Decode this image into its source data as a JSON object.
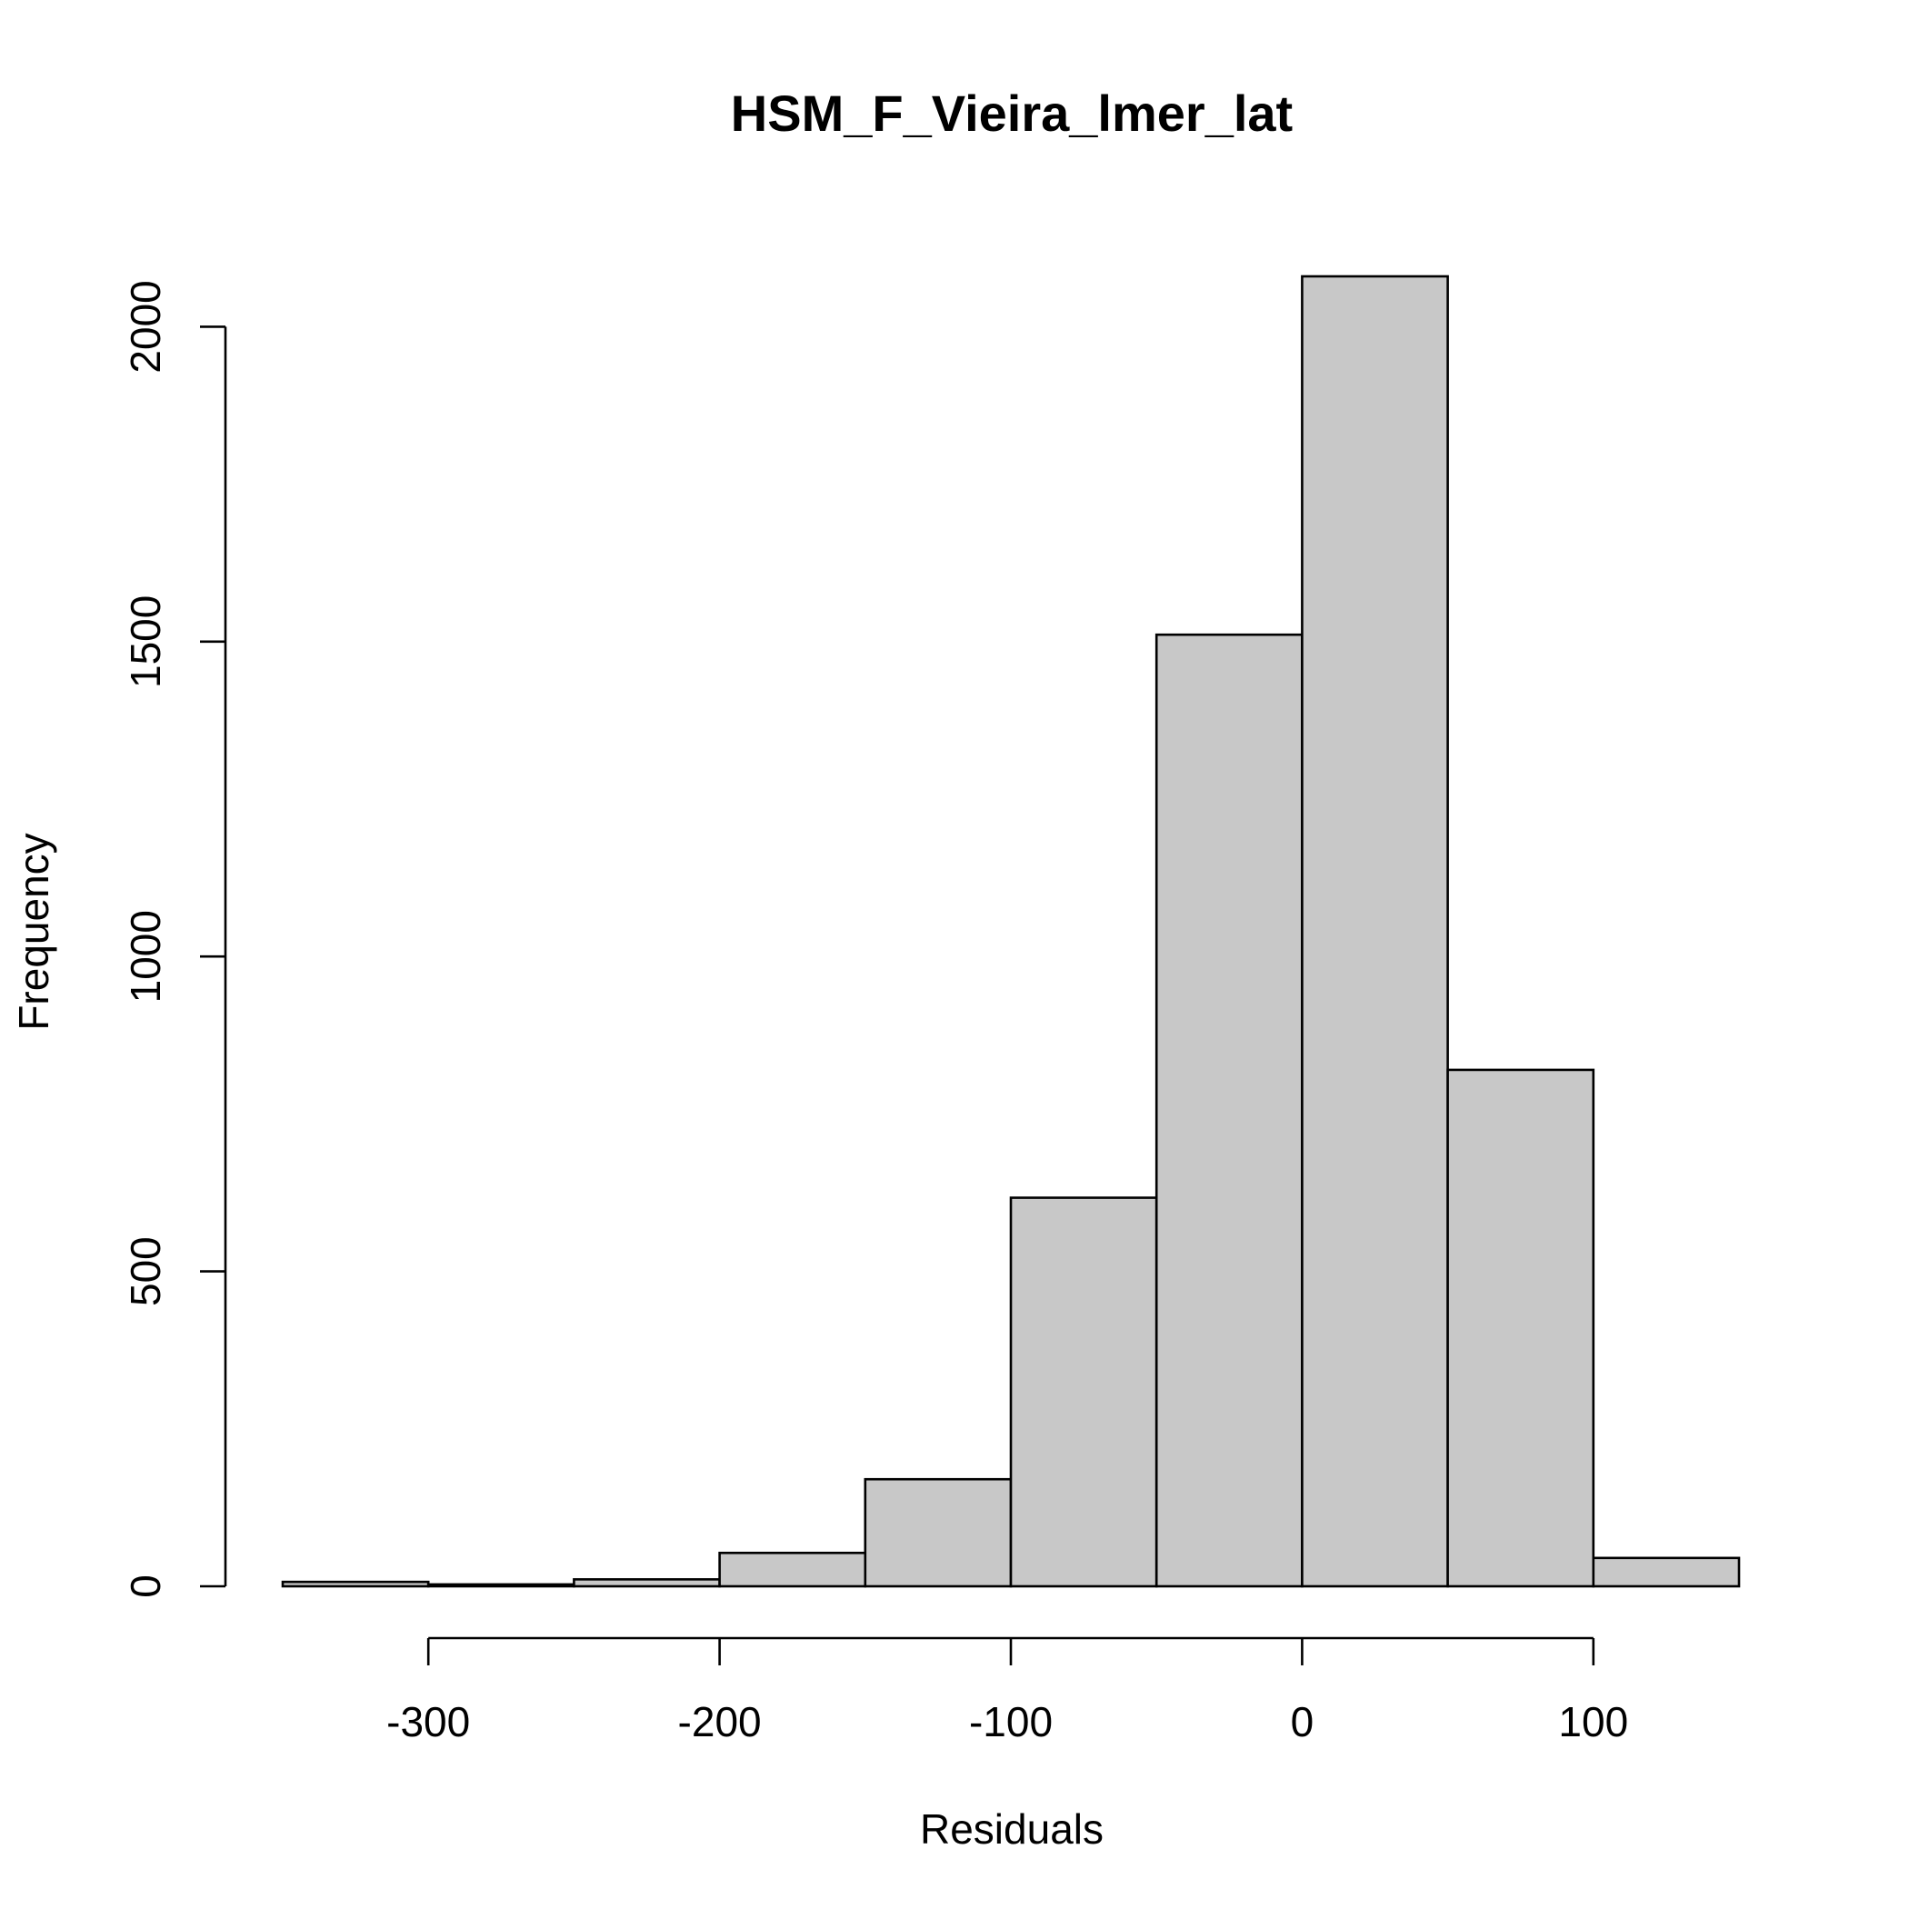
{
  "chart_data": {
    "type": "histogram",
    "title": "HSM_F_Vieira_lmer_lat",
    "xlabel": "Residuals",
    "ylabel": "Frequency",
    "bins": [
      {
        "x0": -350,
        "x1": -300,
        "count": 7
      },
      {
        "x0": -300,
        "x1": -250,
        "count": 3
      },
      {
        "x0": -250,
        "x1": -200,
        "count": 11
      },
      {
        "x0": -200,
        "x1": -150,
        "count": 53
      },
      {
        "x0": -150,
        "x1": -100,
        "count": 170
      },
      {
        "x0": -100,
        "x1": -50,
        "count": 617
      },
      {
        "x0": -50,
        "x1": 0,
        "count": 1511
      },
      {
        "x0": 0,
        "x1": 50,
        "count": 2080
      },
      {
        "x0": 50,
        "x1": 100,
        "count": 820
      },
      {
        "x0": 100,
        "x1": 150,
        "count": 45
      }
    ],
    "xlim": [
      -350,
      150
    ],
    "ylim": [
      0,
      2080
    ],
    "x_ticks": [
      {
        "value": -300,
        "label": "-300"
      },
      {
        "value": -200,
        "label": "-200"
      },
      {
        "value": -100,
        "label": "-100"
      },
      {
        "value": 0,
        "label": "0"
      },
      {
        "value": 100,
        "label": "100"
      }
    ],
    "y_ticks": [
      {
        "value": 0,
        "label": "0"
      },
      {
        "value": 500,
        "label": "500"
      },
      {
        "value": 1000,
        "label": "1000"
      },
      {
        "value": 1500,
        "label": "1500"
      },
      {
        "value": 2000,
        "label": "2000"
      }
    ],
    "bar_color": "#c8c8c8",
    "edge_color": "#000000"
  }
}
